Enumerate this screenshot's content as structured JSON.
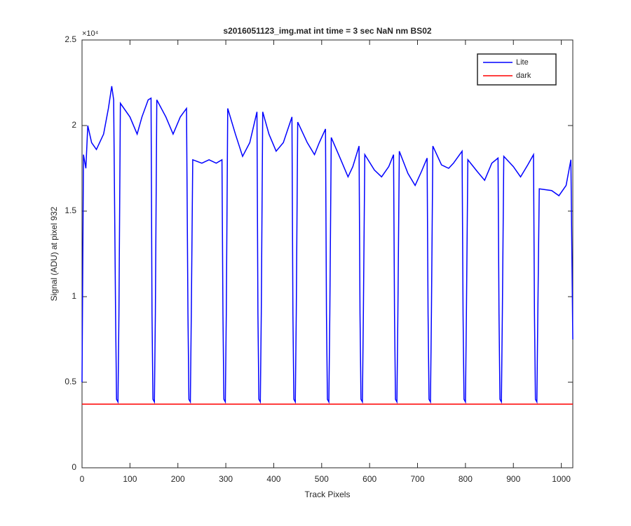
{
  "chart_data": {
    "type": "line",
    "title": "s2016051123_img.mat int time = 3 sec  NaN nm BS02",
    "x_label": "Track Pixels",
    "y_label": "Signal (ADU) at pixel 932",
    "y_exponent": "×10⁴",
    "xlim": [
      0,
      1024
    ],
    "ylim": [
      0,
      25000
    ],
    "xticks": [
      0,
      100,
      200,
      300,
      400,
      500,
      600,
      700,
      800,
      900,
      1000
    ],
    "yticks": [
      0,
      {
        "value": 5000,
        "label": "0.5"
      },
      {
        "value": 10000,
        "label": "1"
      },
      {
        "value": 15000,
        "label": "1.5"
      },
      {
        "value": 20000,
        "label": "2"
      },
      {
        "value": 25000,
        "label": "2.5"
      }
    ],
    "legend": "top-right",
    "series": [
      {
        "name": "Lite",
        "color": "#0000ff",
        "x": [
          0,
          3,
          8,
          12,
          20,
          30,
          45,
          55,
          62,
          66,
          70,
          72,
          75,
          77,
          80,
          100,
          115,
          125,
          138,
          144,
          146,
          148,
          151,
          153,
          156,
          175,
          190,
          205,
          218,
          221,
          223,
          226,
          228,
          231,
          250,
          265,
          280,
          292,
          294,
          296,
          299,
          301,
          304,
          320,
          335,
          350,
          365,
          367,
          369,
          372,
          374,
          377,
          390,
          405,
          420,
          438,
          440,
          442,
          445,
          447,
          450,
          470,
          485,
          495,
          508,
          510,
          512,
          515,
          517,
          520,
          540,
          555,
          565,
          578,
          580,
          582,
          585,
          587,
          590,
          610,
          625,
          640,
          650,
          652,
          654,
          657,
          659,
          662,
          680,
          695,
          708,
          720,
          722,
          724,
          727,
          729,
          732,
          750,
          765,
          775,
          793,
          795,
          797,
          800,
          802,
          805,
          825,
          840,
          855,
          868,
          870,
          872,
          875,
          877,
          880,
          900,
          915,
          930,
          942,
          944,
          946,
          949,
          951,
          954,
          980,
          995,
          1010,
          1020,
          1024
        ],
        "values": [
          5000,
          18300,
          17500,
          20000,
          19000,
          18600,
          19500,
          21000,
          22300,
          21500,
          9000,
          4000,
          3850,
          9000,
          21300,
          20500,
          19500,
          20500,
          21500,
          21600,
          9000,
          4000,
          3850,
          9000,
          21500,
          20500,
          19500,
          20500,
          21000,
          9000,
          4000,
          3850,
          9000,
          18000,
          17800,
          18000,
          17800,
          18000,
          9000,
          4000,
          3850,
          9000,
          21000,
          19500,
          18200,
          19000,
          20800,
          9000,
          4000,
          3850,
          9000,
          20800,
          19500,
          18500,
          19000,
          20500,
          9000,
          4000,
          3850,
          9000,
          20200,
          19000,
          18300,
          19000,
          19800,
          9000,
          4000,
          3850,
          9000,
          19300,
          18000,
          17000,
          17600,
          18800,
          9000,
          4000,
          3850,
          9000,
          18300,
          17400,
          17000,
          17600,
          18300,
          9000,
          4000,
          3850,
          9000,
          18500,
          17200,
          16500,
          17300,
          18100,
          9000,
          4000,
          3850,
          9000,
          18800,
          17700,
          17500,
          17800,
          18500,
          9000,
          4000,
          3850,
          9000,
          18000,
          17300,
          16800,
          17800,
          18100,
          9000,
          4000,
          3850,
          9000,
          18200,
          17600,
          17000,
          17700,
          18300,
          9000,
          4000,
          3850,
          9000,
          16300,
          16200,
          15900,
          16500,
          18000,
          7500
        ]
      },
      {
        "name": "dark",
        "color": "#ff0000",
        "x": [
          0,
          1024
        ],
        "values": [
          3720,
          3720
        ]
      }
    ]
  }
}
